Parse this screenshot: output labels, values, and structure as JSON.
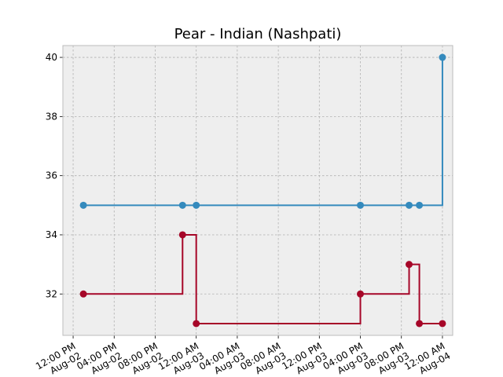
{
  "chart_data": {
    "type": "line",
    "title": "Pear - Indian (Nashpati)",
    "xlabel": "",
    "ylabel": "",
    "grid": true,
    "background": "#eeeeee",
    "xlim": [
      "2023-08-02 11:00",
      "2023-08-04 01:00"
    ],
    "ylim": [
      30.6,
      40.4
    ],
    "x_ticks": [
      {
        "time": "2023-08-02 12:00",
        "line1": "12:00 PM",
        "line2": "Aug-02"
      },
      {
        "time": "2023-08-02 16:00",
        "line1": "04:00 PM",
        "line2": "Aug-02"
      },
      {
        "time": "2023-08-02 20:00",
        "line1": "08:00 PM",
        "line2": "Aug-02"
      },
      {
        "time": "2023-08-03 00:00",
        "line1": "12:00 AM",
        "line2": "Aug-03"
      },
      {
        "time": "2023-08-03 04:00",
        "line1": "04:00 AM",
        "line2": "Aug-03"
      },
      {
        "time": "2023-08-03 08:00",
        "line1": "08:00 AM",
        "line2": "Aug-03"
      },
      {
        "time": "2023-08-03 12:00",
        "line1": "12:00 PM",
        "line2": "Aug-03"
      },
      {
        "time": "2023-08-03 16:00",
        "line1": "04:00 PM",
        "line2": "Aug-03"
      },
      {
        "time": "2023-08-03 20:00",
        "line1": "08:00 PM",
        "line2": "Aug-03"
      },
      {
        "time": "2023-08-04 00:00",
        "line1": "12:00 AM",
        "line2": "Aug-04"
      }
    ],
    "y_ticks": [
      32,
      34,
      36,
      38,
      40
    ],
    "series": [
      {
        "color": "#348ABD",
        "step": "post",
        "points": [
          {
            "x": "2023-08-02 13:00",
            "y": 35
          },
          {
            "x": "2023-08-02 22:40",
            "y": 35
          },
          {
            "x": "2023-08-03 00:00",
            "y": 35
          },
          {
            "x": "2023-08-03 16:00",
            "y": 35
          },
          {
            "x": "2023-08-03 20:45",
            "y": 35
          },
          {
            "x": "2023-08-03 21:45",
            "y": 35
          },
          {
            "x": "2023-08-04 00:00",
            "y": 40
          }
        ]
      },
      {
        "color": "#A60628",
        "step": "post",
        "points": [
          {
            "x": "2023-08-02 13:00",
            "y": 32
          },
          {
            "x": "2023-08-02 22:40",
            "y": 34
          },
          {
            "x": "2023-08-03 00:00",
            "y": 31
          },
          {
            "x": "2023-08-03 16:00",
            "y": 32
          },
          {
            "x": "2023-08-03 20:45",
            "y": 33
          },
          {
            "x": "2023-08-03 21:45",
            "y": 31
          },
          {
            "x": "2023-08-04 00:00",
            "y": 31
          }
        ]
      }
    ]
  }
}
